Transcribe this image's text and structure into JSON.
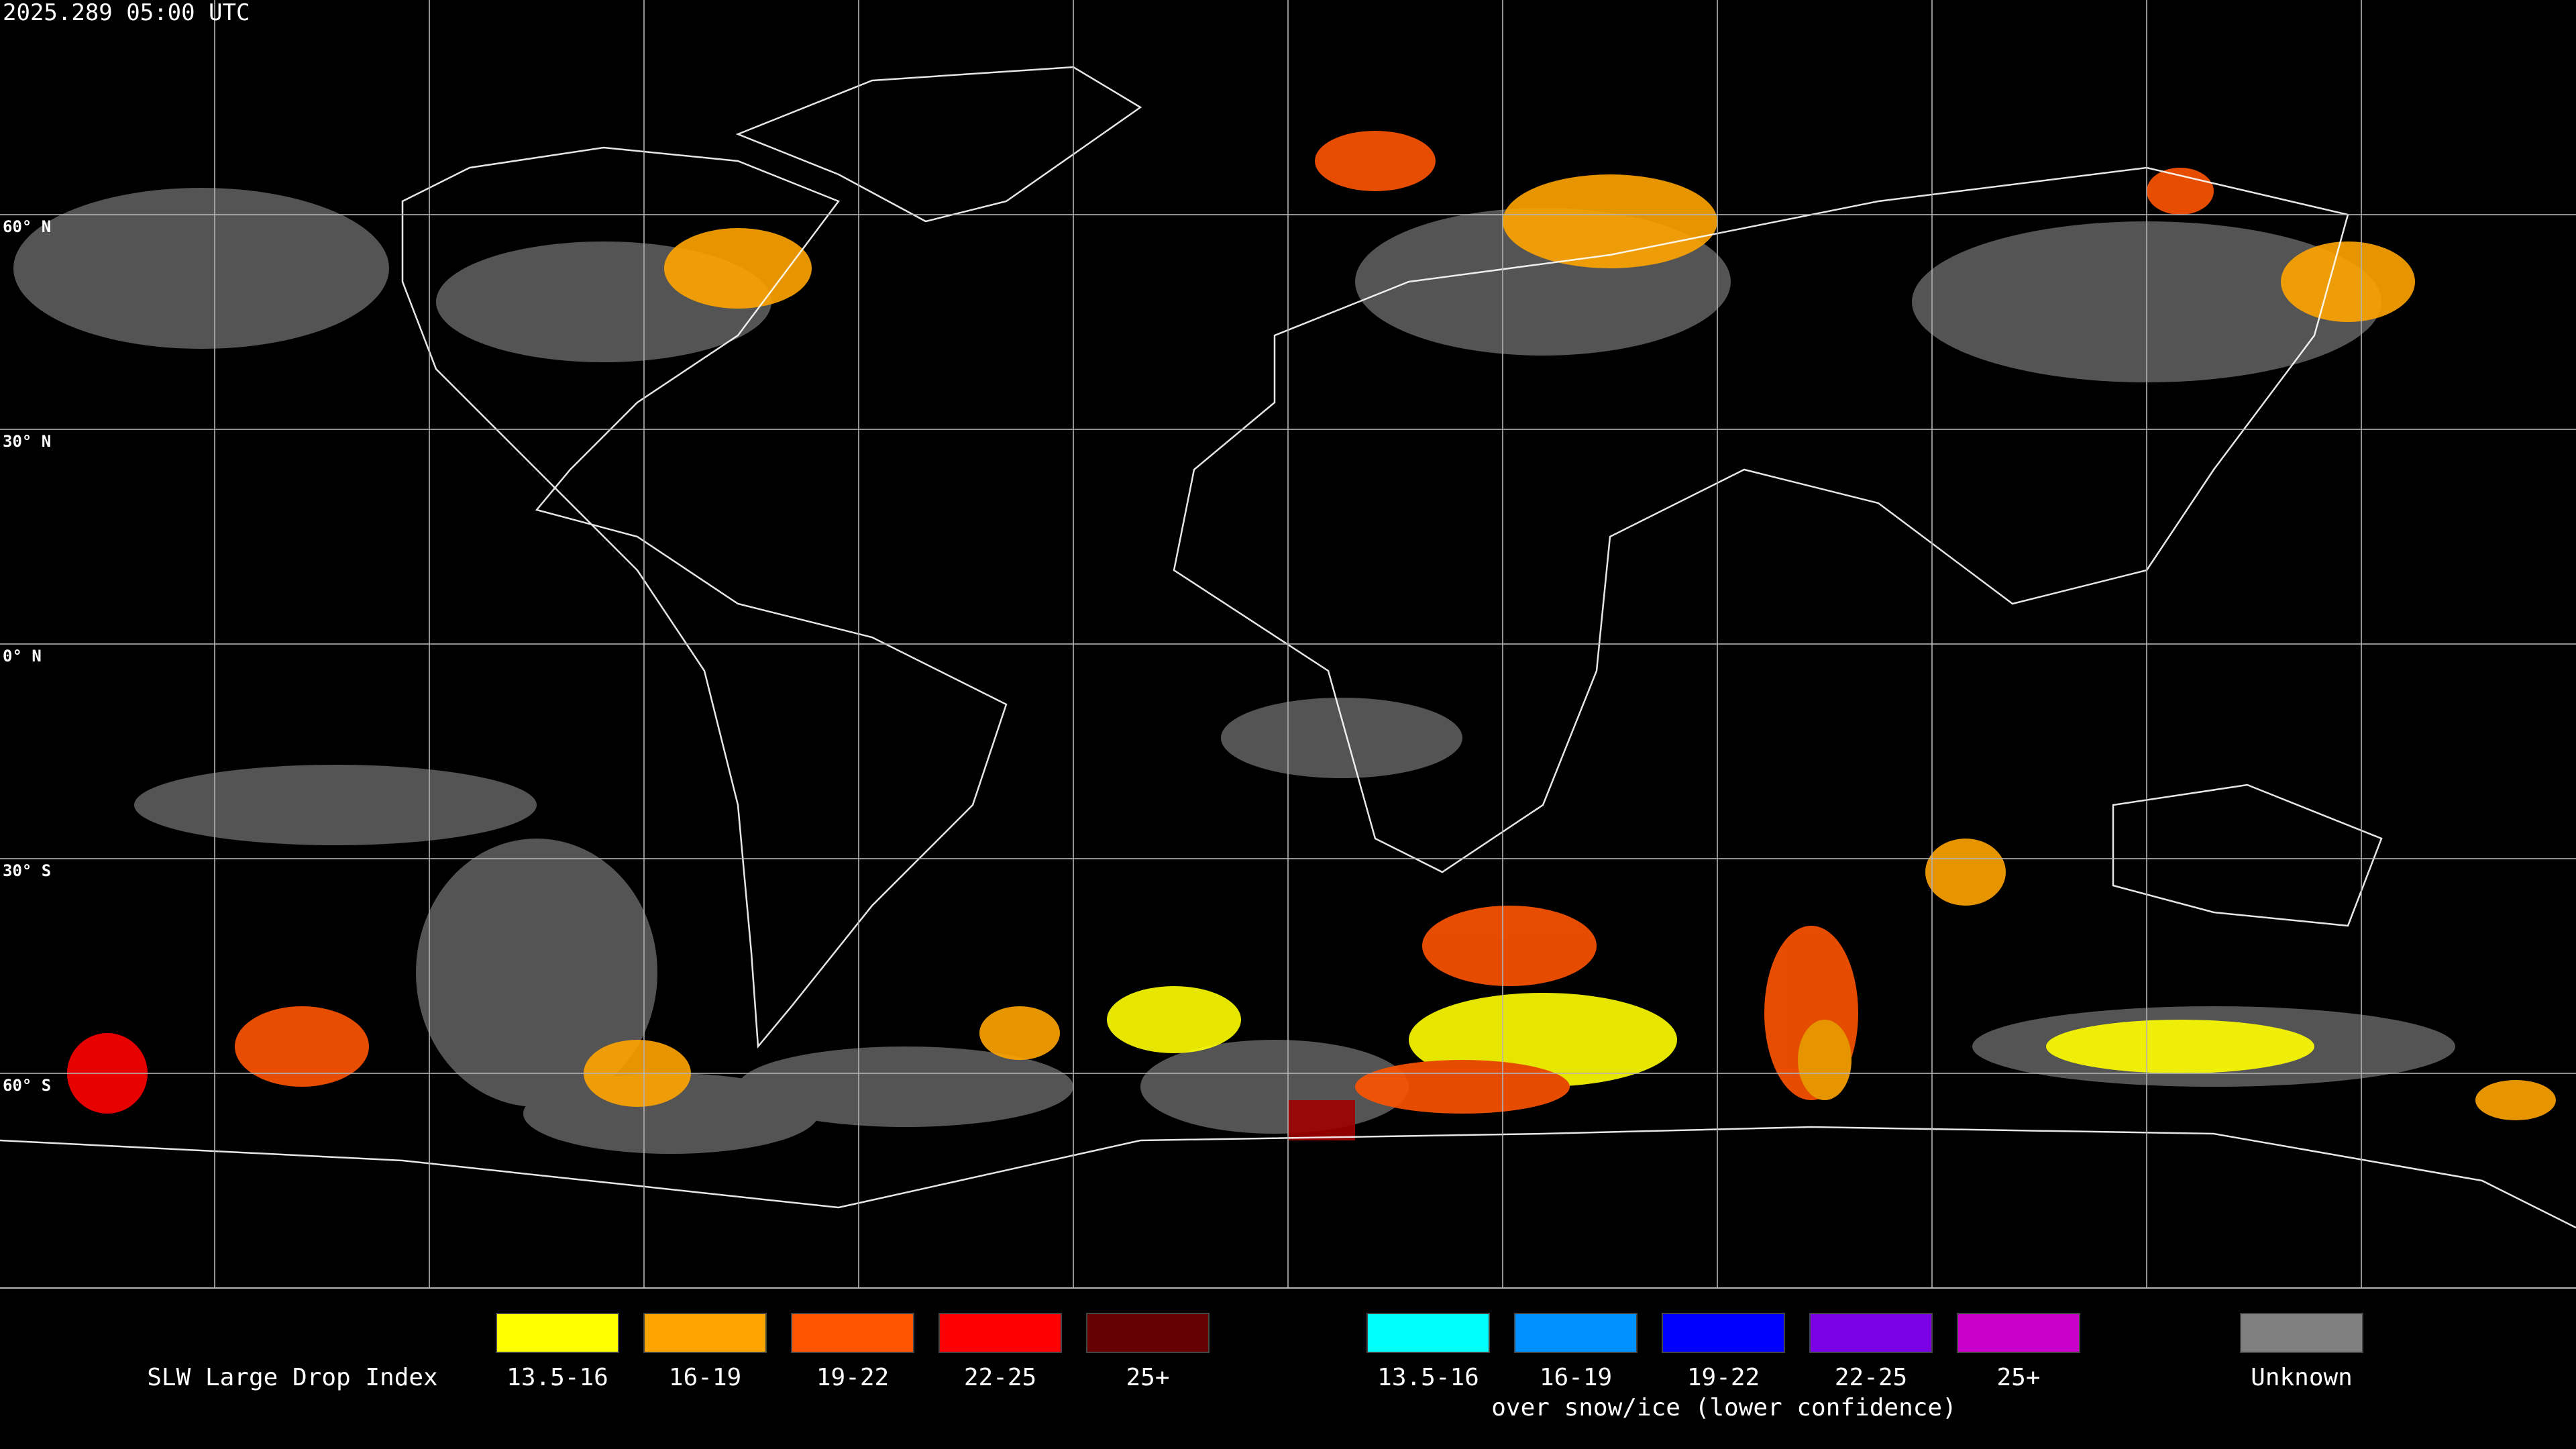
{
  "timestamp": "2025.289 05:00 UTC",
  "latitude_labels": [
    "60° N",
    "30° N",
    "0° N",
    "30° S",
    "60° S"
  ],
  "legend": {
    "title": "SLW Large Drop Index",
    "water": [
      {
        "label": "13.5-16",
        "color": "#ffff00"
      },
      {
        "label": "16-19",
        "color": "#ffa500"
      },
      {
        "label": "19-22",
        "color": "#ff5500"
      },
      {
        "label": "22-25",
        "color": "#ff0000"
      },
      {
        "label": "25+",
        "color": "#640000"
      }
    ],
    "snow_ice": [
      {
        "label": "13.5-16",
        "color": "#00ffff"
      },
      {
        "label": "16-19",
        "color": "#0090ff"
      },
      {
        "label": "19-22",
        "color": "#0000ff"
      },
      {
        "label": "22-25",
        "color": "#7a00e6"
      },
      {
        "label": "25+",
        "color": "#c800c8"
      }
    ],
    "snow_ice_note": "over snow/ice (lower confidence)",
    "unknown": {
      "label": "Unknown",
      "color": "#808080"
    }
  }
}
